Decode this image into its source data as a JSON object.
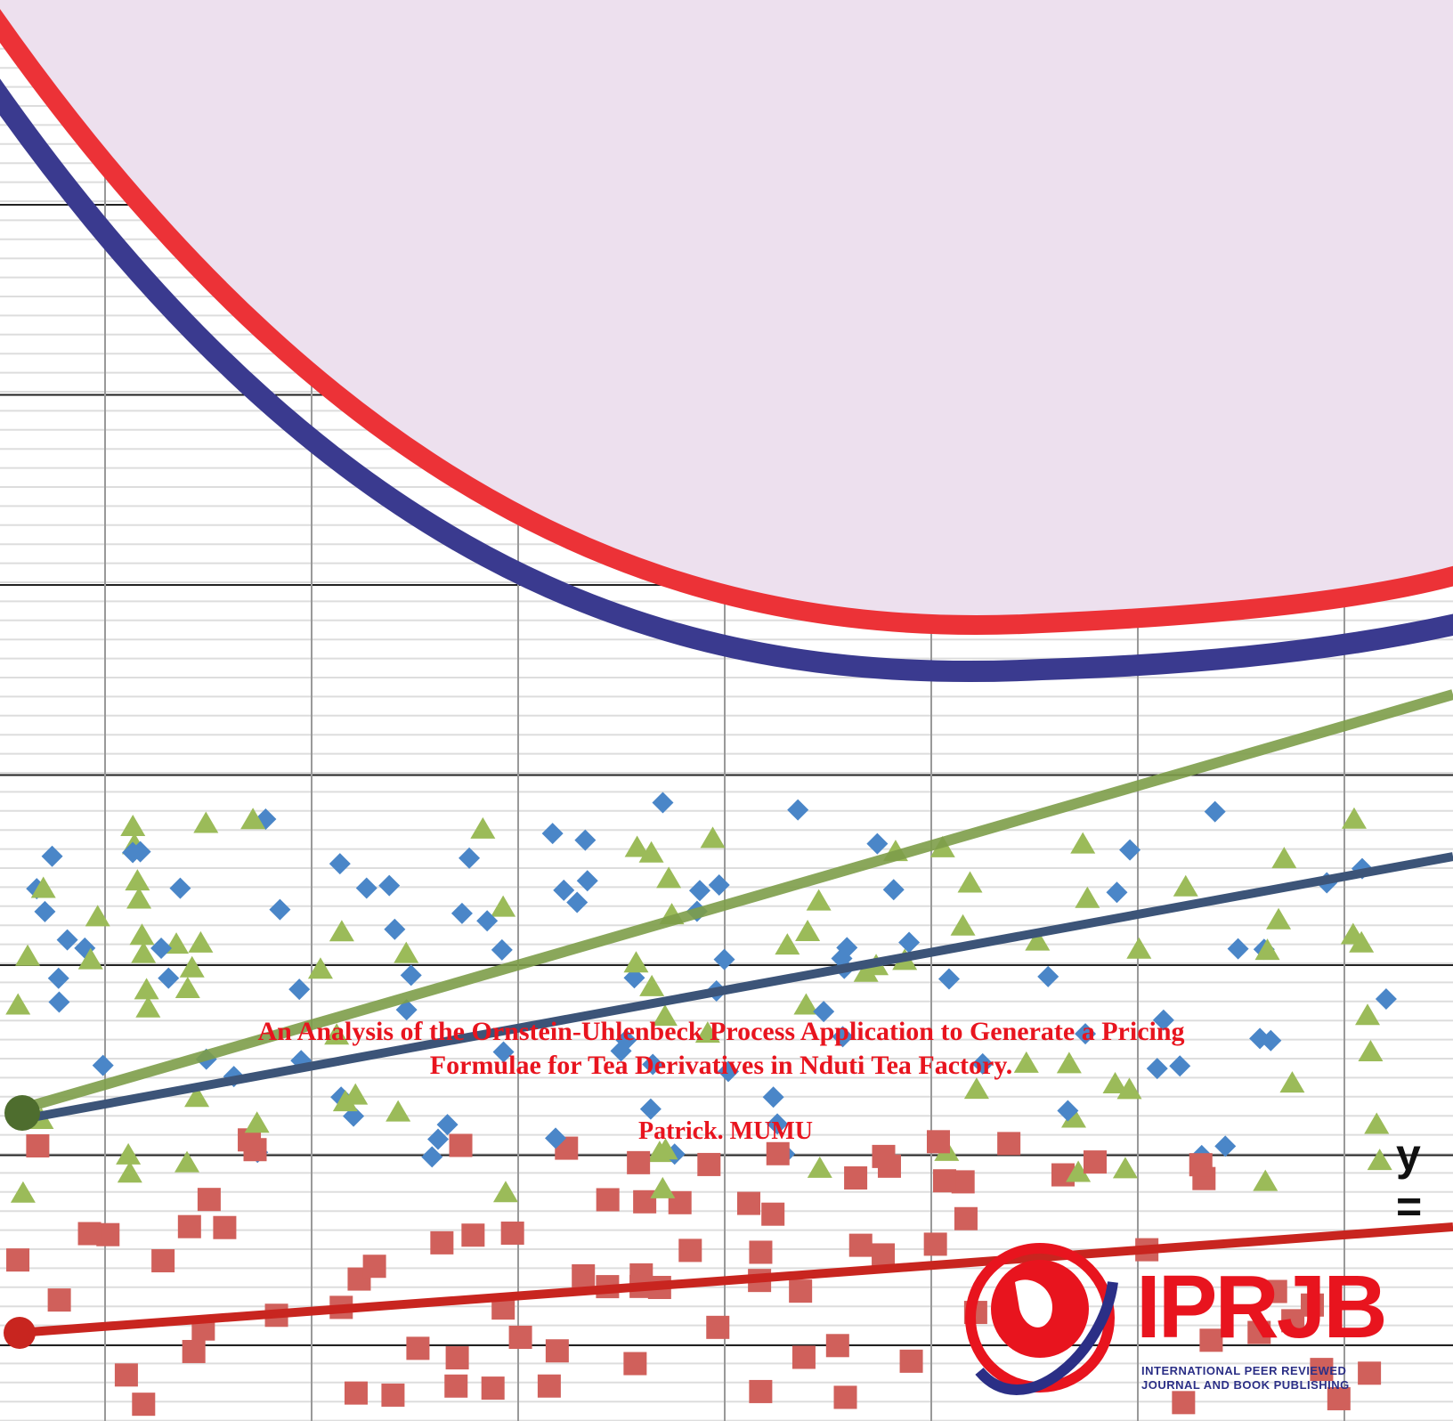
{
  "cover": {
    "title": "An Analysis of the Ornstein-Uhlenbeck Process Application to Generate a Pricing Formulae for Tea Derivatives in Nduti Tea Factory.",
    "author": "Patrick. MUMU",
    "equation_fragment": "y =",
    "logo": {
      "name": "IPRJB",
      "line1": "INTERNATIONAL PEER REVIEWED",
      "line2": "JOURNAL AND BOOK PUBLISHING"
    }
  }
}
